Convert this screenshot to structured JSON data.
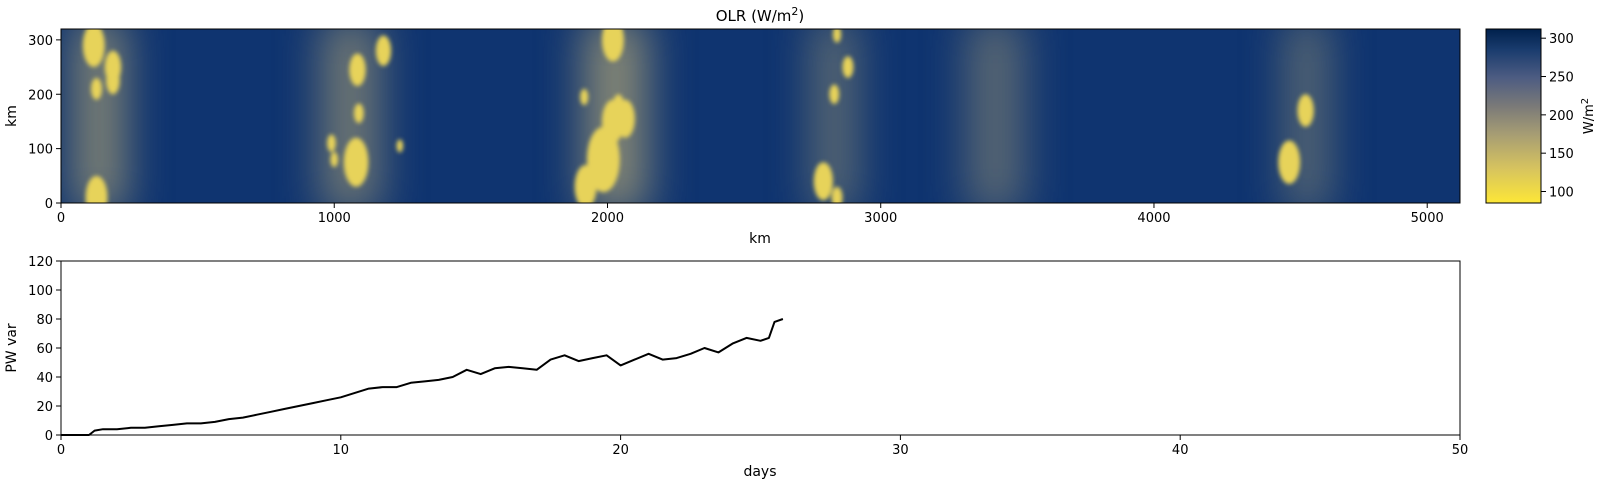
{
  "chart_data": [
    {
      "type": "heatmap",
      "title_main": "OLR (W/m",
      "title_sup": "2",
      "title_close": ")",
      "xlabel": "km",
      "ylabel": "km",
      "xlim": [
        0,
        5120
      ],
      "ylim": [
        0,
        320
      ],
      "xticks": [
        0,
        1000,
        2000,
        3000,
        4000,
        5000
      ],
      "yticks": [
        0,
        100,
        200,
        300
      ],
      "colorbar": {
        "label_main": "W/m",
        "label_sup": "2",
        "range": [
          85,
          312
        ],
        "ticks": [
          100,
          150,
          200,
          250,
          300
        ],
        "colormap": "cividis_r",
        "low_color": "#fde737",
        "high_color": "#00204c"
      },
      "clouds": [
        {
          "x": 140,
          "width": 180,
          "intensity": 0.85
        },
        {
          "x": 1060,
          "width": 210,
          "intensity": 0.7
        },
        {
          "x": 2030,
          "width": 230,
          "intensity": 0.85
        },
        {
          "x": 2830,
          "width": 150,
          "intensity": 0.6
        },
        {
          "x": 3420,
          "width": 200,
          "intensity": 0.55
        },
        {
          "x": 4560,
          "width": 140,
          "intensity": 0.6
        }
      ],
      "convective_cells": [
        {
          "x": 120,
          "y": 290,
          "r": 40
        },
        {
          "x": 190,
          "y": 250,
          "r": 30
        },
        {
          "x": 190,
          "y": 225,
          "r": 25
        },
        {
          "x": 130,
          "y": 210,
          "r": 20
        },
        {
          "x": 130,
          "y": 10,
          "r": 40
        },
        {
          "x": 1085,
          "y": 245,
          "r": 30
        },
        {
          "x": 1090,
          "y": 165,
          "r": 18
        },
        {
          "x": 1080,
          "y": 75,
          "r": 45
        },
        {
          "x": 990,
          "y": 110,
          "r": 16
        },
        {
          "x": 1000,
          "y": 80,
          "r": 14
        },
        {
          "x": 1180,
          "y": 280,
          "r": 28
        },
        {
          "x": 1240,
          "y": 105,
          "r": 12
        },
        {
          "x": 2020,
          "y": 300,
          "r": 40
        },
        {
          "x": 2020,
          "y": 150,
          "r": 40
        },
        {
          "x": 1985,
          "y": 80,
          "r": 60
        },
        {
          "x": 1920,
          "y": 30,
          "r": 40
        },
        {
          "x": 2065,
          "y": 155,
          "r": 35
        },
        {
          "x": 2040,
          "y": 180,
          "r": 20
        },
        {
          "x": 1915,
          "y": 195,
          "r": 15
        },
        {
          "x": 2840,
          "y": 310,
          "r": 15
        },
        {
          "x": 2880,
          "y": 250,
          "r": 20
        },
        {
          "x": 2830,
          "y": 200,
          "r": 18
        },
        {
          "x": 2790,
          "y": 40,
          "r": 35
        },
        {
          "x": 2840,
          "y": 10,
          "r": 20
        },
        {
          "x": 4495,
          "y": 75,
          "r": 40
        },
        {
          "x": 4555,
          "y": 170,
          "r": 30
        }
      ]
    },
    {
      "type": "line",
      "xlabel": "days",
      "ylabel": "PW var",
      "xlim": [
        0,
        50
      ],
      "ylim": [
        0,
        120
      ],
      "xticks": [
        0,
        10,
        20,
        30,
        40,
        50
      ],
      "yticks": [
        0,
        20,
        40,
        60,
        80,
        100,
        120
      ],
      "line_color": "#000000",
      "x": [
        0.0,
        0.5,
        1.0,
        1.2,
        1.5,
        2.0,
        2.5,
        3.0,
        3.5,
        4.0,
        4.5,
        5.0,
        5.5,
        6.0,
        6.5,
        7.0,
        7.5,
        8.0,
        8.5,
        9.0,
        9.5,
        10.0,
        10.5,
        11.0,
        11.5,
        12.0,
        12.5,
        13.0,
        13.5,
        14.0,
        14.5,
        15.0,
        15.5,
        16.0,
        16.5,
        17.0,
        17.5,
        18.0,
        18.5,
        19.0,
        19.5,
        20.0,
        20.5,
        21.0,
        21.5,
        22.0,
        22.5,
        23.0,
        23.5,
        24.0,
        24.5,
        25.0,
        25.3,
        25.5,
        25.8
      ],
      "y": [
        0,
        0,
        0,
        3,
        4,
        4,
        5,
        5,
        6,
        7,
        8,
        8,
        9,
        11,
        12,
        14,
        16,
        18,
        20,
        22,
        24,
        26,
        29,
        32,
        33,
        33,
        36,
        37,
        38,
        40,
        45,
        42,
        46,
        47,
        46,
        45,
        52,
        55,
        51,
        53,
        55,
        48,
        52,
        56,
        52,
        53,
        56,
        60,
        57,
        63,
        67,
        65,
        67,
        78,
        80
      ]
    }
  ]
}
